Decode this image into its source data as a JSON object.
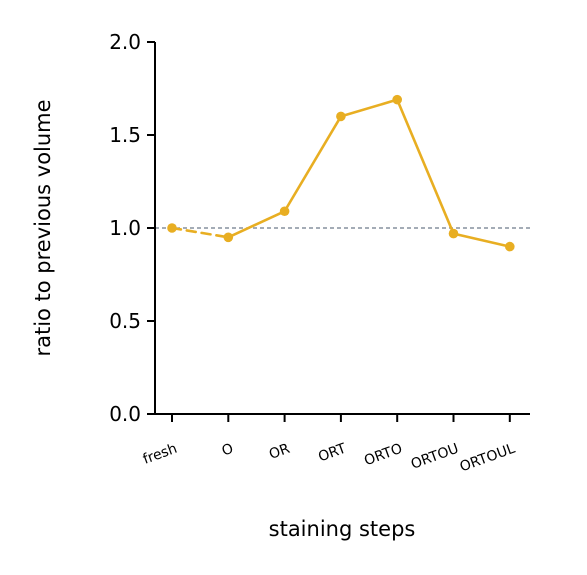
{
  "chart_data": {
    "type": "line",
    "xlabel": "staining steps",
    "ylabel": "ratio to previous volume",
    "categories": [
      "fresh",
      "O",
      "OR",
      "ORT",
      "ORTO",
      "ORTOU",
      "ORTOUL"
    ],
    "values": [
      1.0,
      0.95,
      1.09,
      1.6,
      1.69,
      0.97,
      0.9
    ],
    "first_segment_style": "dashed",
    "ylim": [
      0.0,
      2.0
    ],
    "yticks": [
      0.0,
      0.5,
      1.0,
      1.5,
      2.0
    ],
    "ytick_labels": [
      "0.0",
      "0.5",
      "1.0",
      "1.5",
      "2.0"
    ],
    "reference_line": 1.0,
    "grid": false,
    "colors": {
      "series": "#E8AE22",
      "reference": "#6E7B8B",
      "axis": "#000000"
    }
  }
}
